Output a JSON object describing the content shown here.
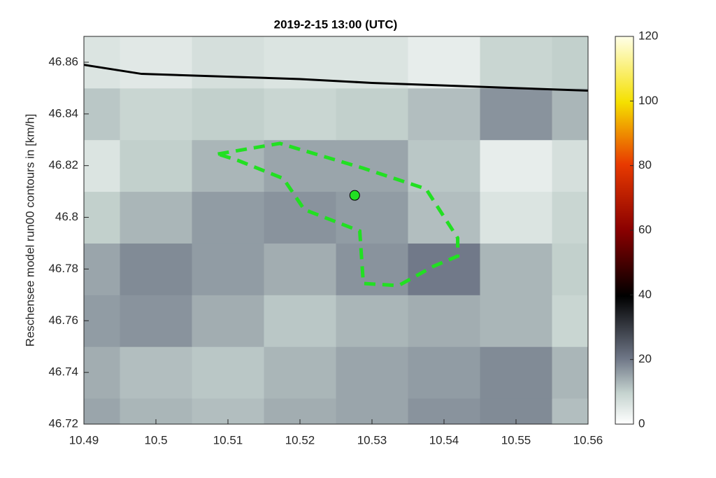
{
  "chart_data": {
    "type": "heatmap",
    "title": "2019-2-15  13:00 (UTC)",
    "y_label": "Reschensee model run00  contours in [km/h]",
    "x": [
      10.49,
      10.5,
      10.51,
      10.52,
      10.53,
      10.54,
      10.55,
      10.56
    ],
    "y": [
      46.72,
      46.74,
      46.76,
      46.78,
      46.8,
      46.82,
      46.84,
      46.86
    ],
    "z": [
      [
        15,
        13,
        12,
        14,
        15,
        17,
        18,
        12
      ],
      [
        14,
        12,
        11,
        13,
        15,
        16,
        18,
        13
      ],
      [
        16,
        17,
        14,
        11,
        13,
        14,
        13,
        9
      ],
      [
        15,
        18,
        16,
        14,
        17,
        20,
        13,
        10
      ],
      [
        10,
        13,
        16,
        17,
        16,
        12,
        6,
        9
      ],
      [
        6,
        10,
        13,
        15,
        15,
        11,
        4,
        7
      ],
      [
        11,
        9,
        10,
        9,
        10,
        12,
        17,
        13
      ],
      [
        6,
        5,
        7,
        6,
        6,
        4,
        9,
        10
      ]
    ],
    "xlim": [
      10.49,
      10.56
    ],
    "ylim": [
      46.72,
      46.87
    ],
    "xticks": [
      10.49,
      10.5,
      10.51,
      10.52,
      10.53,
      10.54,
      10.55,
      10.56
    ],
    "yticks": [
      46.72,
      46.74,
      46.76,
      46.78,
      46.8,
      46.82,
      46.84,
      46.86
    ],
    "clim": [
      0,
      120
    ],
    "cticks": [
      0,
      20,
      40,
      60,
      80,
      100,
      120
    ],
    "lines": [
      {
        "color": "#000000",
        "style": "solid",
        "x": [
          10.49,
          10.498,
          10.52,
          10.53,
          10.54,
          10.55,
          10.56
        ],
        "y": [
          46.859,
          46.8555,
          46.8535,
          46.852,
          46.851,
          46.85,
          46.849
        ]
      },
      {
        "color": "#22e022",
        "style": "dashed",
        "x": [
          10.5086,
          10.5172,
          10.5288,
          10.5375,
          10.5419,
          10.5419,
          10.5385,
          10.5337,
          10.5288,
          10.5283,
          10.5206,
          10.5177,
          10.5114,
          10.5086
        ],
        "y": [
          46.8245,
          46.8286,
          46.819,
          46.811,
          46.792,
          46.785,
          46.781,
          46.7736,
          46.7744,
          46.7947,
          46.803,
          46.815,
          46.822,
          46.8245
        ]
      }
    ],
    "points": {
      "color": "#22e022",
      "x": [
        10.5276
      ],
      "y": [
        46.8085
      ]
    }
  }
}
